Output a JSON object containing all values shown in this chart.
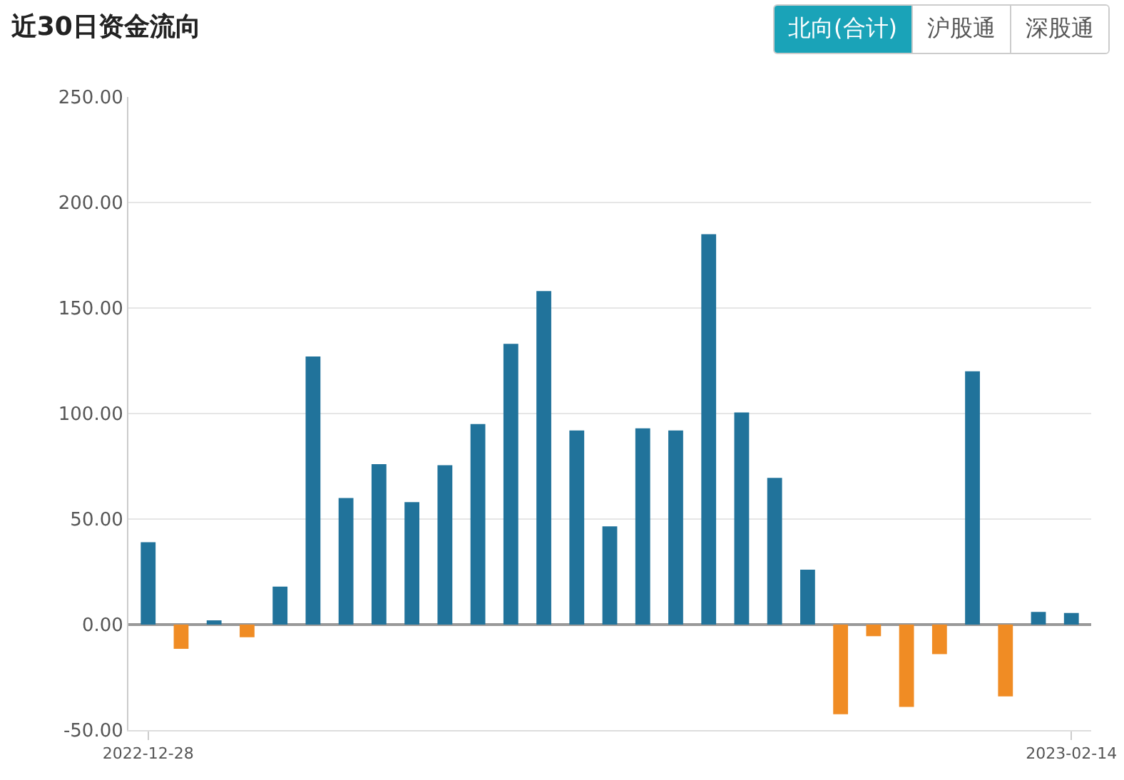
{
  "chart_data": {
    "type": "bar",
    "title": "近30日资金流向",
    "annotations": [
      "北向(合计)",
      "沪股通",
      "深股通"
    ],
    "categories": [
      "2022-12-28",
      null,
      null,
      null,
      null,
      null,
      null,
      null,
      null,
      null,
      null,
      null,
      null,
      null,
      null,
      null,
      null,
      null,
      null,
      null,
      null,
      null,
      null,
      null,
      null,
      null,
      null,
      null,
      "2023-02-14"
    ],
    "values": [
      39,
      -11.5,
      2,
      -6,
      18,
      127,
      60,
      76,
      58,
      75.5,
      95,
      133,
      158,
      92,
      46.5,
      93,
      92,
      185,
      100.5,
      69.5,
      26,
      -42.5,
      -5.5,
      -39,
      -14,
      120,
      -34,
      6,
      5.5
    ],
    "colors": [
      "#21739b",
      "#f08c24",
      "#21739b",
      "#f08c24",
      "#21739b",
      "#21739b",
      "#21739b",
      "#21739b",
      "#21739b",
      "#21739b",
      "#21739b",
      "#21739b",
      "#21739b",
      "#21739b",
      "#21739b",
      "#21739b",
      "#21739b",
      "#21739b",
      "#21739b",
      "#21739b",
      "#21739b",
      "#f08c24",
      "#f08c24",
      "#f08c24",
      "#f08c24",
      "#21739b",
      "#f08c24",
      "#21739b",
      "#21739b"
    ],
    "ylim": [
      -50,
      250
    ],
    "yticks": [
      {
        "value": -50,
        "label": "-50.00"
      },
      {
        "value": 0,
        "label": "0.00"
      },
      {
        "value": 50,
        "label": "50.00"
      },
      {
        "value": 100,
        "label": "100.00"
      },
      {
        "value": 150,
        "label": "150.00"
      },
      {
        "value": 200,
        "label": "200.00"
      },
      {
        "value": 250,
        "label": "250.00"
      }
    ],
    "grid": "y"
  }
}
